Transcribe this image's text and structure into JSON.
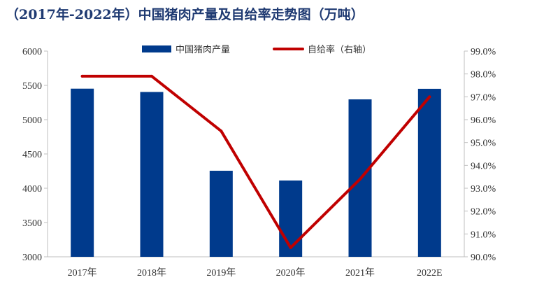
{
  "chart_data": {
    "type": "bar",
    "title": "（2017年-2022年）中国猪肉产量及自给率走势图（万吨）",
    "categories": [
      "2017年",
      "2018年",
      "2019年",
      "2020年",
      "2021年",
      "2022E"
    ],
    "series": [
      {
        "name": "中国猪肉产量",
        "type": "bar",
        "axis": "left",
        "color": "#003a8c",
        "values": [
          5452,
          5404,
          4255,
          4113,
          5296,
          5450
        ]
      },
      {
        "name": "自给率（右轴）",
        "type": "line",
        "axis": "right",
        "color": "#c00000",
        "values": [
          97.9,
          97.9,
          95.5,
          90.4,
          93.4,
          97.0
        ]
      }
    ],
    "y_left": {
      "min": 3000,
      "max": 6000,
      "ticks": [
        "3000",
        "3500",
        "4000",
        "4500",
        "5000",
        "5500",
        "6000"
      ]
    },
    "y_right": {
      "min": 90.0,
      "max": 99.0,
      "ticks": [
        "90.0%",
        "91.0%",
        "92.0%",
        "93.0%",
        "94.0%",
        "95.0%",
        "96.0%",
        "97.0%",
        "98.0%",
        "99.0%"
      ]
    },
    "grid": false,
    "legend_position": "top-center"
  }
}
